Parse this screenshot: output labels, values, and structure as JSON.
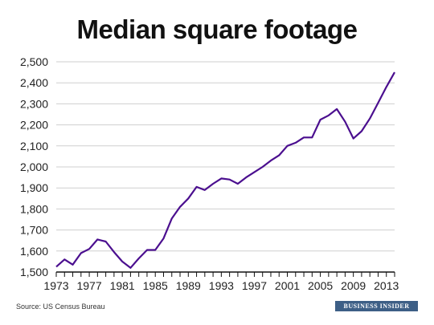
{
  "colors": {
    "line": "#4b0f8f",
    "axis": "#111111",
    "grid": "#cfcfcf",
    "brand_bg": "#3d5f86"
  },
  "source": "Source: US Census Bureau",
  "brand": "BUSINESS INSIDER",
  "chart_data": {
    "type": "line",
    "title": "Median square footage",
    "xlabel": "",
    "ylabel": "",
    "xlim": [
      1973,
      2014
    ],
    "ylim": [
      1500,
      2500
    ],
    "grid": "horizontal",
    "x_ticks": [
      "1973",
      "1977",
      "1981",
      "1985",
      "1989",
      "1993",
      "1997",
      "2001",
      "2005",
      "2009",
      "2013"
    ],
    "y_ticks": [
      "1,500",
      "1,600",
      "1,700",
      "1,800",
      "1,900",
      "2,000",
      "2,100",
      "2,200",
      "2,300",
      "2,400",
      "2,500"
    ],
    "x": [
      1973,
      1974,
      1975,
      1976,
      1977,
      1978,
      1979,
      1980,
      1981,
      1982,
      1983,
      1984,
      1985,
      1986,
      1987,
      1988,
      1989,
      1990,
      1991,
      1992,
      1993,
      1994,
      1995,
      1996,
      1997,
      1998,
      1999,
      2000,
      2001,
      2002,
      2003,
      2004,
      2005,
      2006,
      2007,
      2008,
      2009,
      2010,
      2011,
      2012,
      2013,
      2014
    ],
    "values": [
      1525,
      1560,
      1535,
      1590,
      1610,
      1655,
      1645,
      1595,
      1550,
      1520,
      1565,
      1605,
      1605,
      1660,
      1755,
      1810,
      1850,
      1905,
      1890,
      1920,
      1945,
      1940,
      1920,
      1950,
      1975,
      2000,
      2030,
      2055,
      2100,
      2115,
      2140,
      2140,
      2225,
      2245,
      2275,
      2215,
      2135,
      2170,
      2230,
      2305,
      2380,
      2450
    ]
  }
}
